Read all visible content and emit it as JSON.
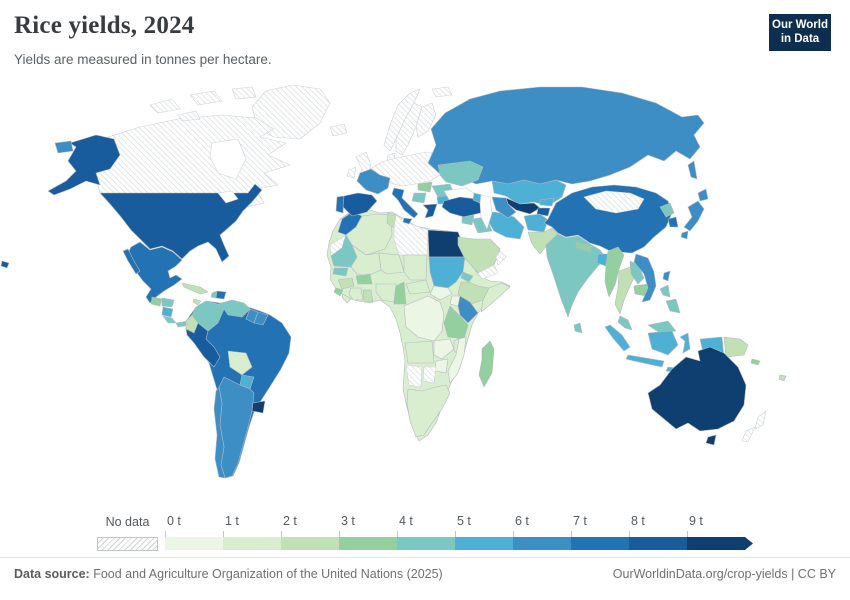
{
  "header": {
    "title": "Rice yields, 2024",
    "subtitle": "Yields are measured in tonnes per hectare."
  },
  "logo": {
    "line1": "Our World",
    "line2": "in Data",
    "bg_color": "#0d2e4e",
    "accent_color": "#d5331f"
  },
  "legend": {
    "no_data_label": "No data",
    "tick_labels": [
      "0 t",
      "1 t",
      "2 t",
      "3 t",
      "4 t",
      "5 t",
      "6 t",
      "7 t",
      "8 t",
      "9 t"
    ]
  },
  "footer": {
    "source_label": "Data source:",
    "source_text": " Food and Agriculture Organization of the United Nations (2025)",
    "license_text": "OurWorldinData.org/crop-yields | CC BY"
  },
  "chart_data": {
    "type": "choropleth",
    "title": "Rice yields, 2024",
    "unit": "tonnes per hectare",
    "year": 2024,
    "bin_edges": [
      0,
      1,
      2,
      3,
      4,
      5,
      6,
      7,
      8,
      9
    ],
    "open_ended_top_bin": true,
    "palette": [
      "#ecf6e4",
      "#d9edcf",
      "#c1e0b6",
      "#94cf9f",
      "#7cc7c2",
      "#4fb0d5",
      "#3d8ec5",
      "#2272b4",
      "#185c9e",
      "#0f3f70"
    ],
    "no_data_style": "diagonal-hatch",
    "border_color": "#b3bac0",
    "no_data_border_color": "#ccd1d5",
    "countries": [
      {
        "id": "united-states",
        "name": "United States",
        "value": 8.7
      },
      {
        "id": "canada",
        "name": "Canada",
        "value": null
      },
      {
        "id": "greenland",
        "name": "Greenland",
        "value": null
      },
      {
        "id": "mexico",
        "name": "Mexico",
        "value": 7.4
      },
      {
        "id": "guatemala",
        "name": "Guatemala",
        "value": 3.4
      },
      {
        "id": "honduras",
        "name": "Honduras",
        "value": 4.4
      },
      {
        "id": "nicaragua",
        "name": "Nicaragua",
        "value": 5.4
      },
      {
        "id": "costa-rica",
        "name": "Costa Rica",
        "value": 4.5
      },
      {
        "id": "panama",
        "name": "Panama",
        "value": 4.2
      },
      {
        "id": "cuba",
        "name": "Cuba",
        "value": 2.7
      },
      {
        "id": "jamaica",
        "name": "Jamaica",
        "value": 2.4
      },
      {
        "id": "haiti",
        "name": "Haiti",
        "value": 4.3
      },
      {
        "id": "dominican-republic",
        "name": "Dominican Republic",
        "value": 7.5
      },
      {
        "id": "colombia",
        "name": "Colombia",
        "value": 4.6
      },
      {
        "id": "venezuela",
        "name": "Venezuela",
        "value": 4.4
      },
      {
        "id": "guyana",
        "name": "Guyana",
        "value": 6.4
      },
      {
        "id": "suriname",
        "name": "Suriname",
        "value": 6.6
      },
      {
        "id": "ecuador",
        "name": "Ecuador",
        "value": 2.8
      },
      {
        "id": "peru",
        "name": "Peru",
        "value": 8.8
      },
      {
        "id": "brazil",
        "name": "Brazil",
        "value": 7.0
      },
      {
        "id": "bolivia",
        "name": "Bolivia",
        "value": 1.9
      },
      {
        "id": "paraguay",
        "name": "Paraguay",
        "value": 5.6
      },
      {
        "id": "uruguay",
        "name": "Uruguay",
        "value": 9.3
      },
      {
        "id": "argentina",
        "name": "Argentina",
        "value": 6.8
      },
      {
        "id": "chile",
        "name": "Chile",
        "value": 6.5
      },
      {
        "id": "iceland",
        "name": "Iceland",
        "value": null
      },
      {
        "id": "united-kingdom",
        "name": "United Kingdom",
        "value": null
      },
      {
        "id": "ireland",
        "name": "Ireland",
        "value": null
      },
      {
        "id": "norway",
        "name": "Norway",
        "value": null
      },
      {
        "id": "sweden",
        "name": "Sweden",
        "value": null
      },
      {
        "id": "finland",
        "name": "Finland",
        "value": null
      },
      {
        "id": "denmark",
        "name": "Denmark",
        "value": null
      },
      {
        "id": "central-europe",
        "name": "Central & Northern Europe",
        "value": null
      },
      {
        "id": "france",
        "name": "France",
        "value": 6.2
      },
      {
        "id": "portugal",
        "name": "Portugal",
        "value": 7.8
      },
      {
        "id": "spain",
        "name": "Spain",
        "value": 8.1
      },
      {
        "id": "italy",
        "name": "Italy",
        "value": 7.1
      },
      {
        "id": "greece",
        "name": "Greece",
        "value": 8.3
      },
      {
        "id": "hungary",
        "name": "Hungary",
        "value": 3.5
      },
      {
        "id": "serbia",
        "name": "Serbia",
        "value": 4.5
      },
      {
        "id": "romania",
        "name": "Romania",
        "value": 4.8
      },
      {
        "id": "bulgaria",
        "name": "Bulgaria",
        "value": 5.8
      },
      {
        "id": "ukraine",
        "name": "Ukraine",
        "value": 4.6
      },
      {
        "id": "russia",
        "name": "Russia",
        "value": 6.6
      },
      {
        "id": "turkey",
        "name": "Turkey",
        "value": 8.4
      },
      {
        "id": "azerbaijan",
        "name": "Azerbaijan",
        "value": 5.5
      },
      {
        "id": "syria",
        "name": "Syria",
        "value": 4.5
      },
      {
        "id": "iraq",
        "name": "Iraq",
        "value": 4.3
      },
      {
        "id": "iran",
        "name": "Iran",
        "value": 5.2
      },
      {
        "id": "saudi-arabia",
        "name": "Saudi Arabia",
        "value": 2.5
      },
      {
        "id": "yemen",
        "name": "Yemen",
        "value": null
      },
      {
        "id": "oman",
        "name": "Oman",
        "value": null
      },
      {
        "id": "kazakhstan",
        "name": "Kazakhstan",
        "value": 5.4
      },
      {
        "id": "uzbekistan",
        "name": "Uzbekistan",
        "value": 9.2
      },
      {
        "id": "turkmenistan",
        "name": "Turkmenistan",
        "value": 6.4
      },
      {
        "id": "kyrgyzstan",
        "name": "Kyrgyzstan",
        "value": 5.7
      },
      {
        "id": "tajikistan",
        "name": "Tajikistan",
        "value": 8.6
      },
      {
        "id": "afghanistan",
        "name": "Afghanistan",
        "value": 5.6
      },
      {
        "id": "pakistan",
        "name": "Pakistan",
        "value": 2.8
      },
      {
        "id": "india",
        "name": "India",
        "value": 4.3
      },
      {
        "id": "nepal",
        "name": "Nepal",
        "value": 3.8
      },
      {
        "id": "bangladesh",
        "name": "Bangladesh",
        "value": 5.0
      },
      {
        "id": "sri-lanka",
        "name": "Sri Lanka",
        "value": 4.4
      },
      {
        "id": "myanmar",
        "name": "Myanmar",
        "value": 3.2
      },
      {
        "id": "thailand",
        "name": "Thailand",
        "value": 2.9
      },
      {
        "id": "laos",
        "name": "Laos",
        "value": 4.4
      },
      {
        "id": "cambodia",
        "name": "Cambodia",
        "value": 3.6
      },
      {
        "id": "vietnam",
        "name": "Vietnam",
        "value": 6.2
      },
      {
        "id": "malaysia",
        "name": "Malaysia",
        "value": 4.2
      },
      {
        "id": "indonesia",
        "name": "Indonesia",
        "value": 5.3
      },
      {
        "id": "philippines",
        "name": "Philippines",
        "value": 4.1
      },
      {
        "id": "china",
        "name": "China",
        "value": 7.1
      },
      {
        "id": "mongolia",
        "name": "Mongolia",
        "value": null
      },
      {
        "id": "north-korea",
        "name": "North Korea",
        "value": 4.3
      },
      {
        "id": "south-korea",
        "name": "South Korea",
        "value": 7.3
      },
      {
        "id": "japan",
        "name": "Japan",
        "value": 6.9
      },
      {
        "id": "taiwan",
        "name": "Taiwan",
        "value": 6.1
      },
      {
        "id": "papua-new-guinea",
        "name": "Papua New Guinea",
        "value": 2.6
      },
      {
        "id": "solomon-islands",
        "name": "Solomon Islands",
        "value": 3.0
      },
      {
        "id": "fiji",
        "name": "Fiji",
        "value": 2.9
      },
      {
        "id": "australia",
        "name": "Australia",
        "value": 10.3
      },
      {
        "id": "new-zealand",
        "name": "New Zealand",
        "value": null
      },
      {
        "id": "morocco",
        "name": "Morocco",
        "value": 7.3
      },
      {
        "id": "algeria",
        "name": "Algeria",
        "value": 1.2
      },
      {
        "id": "tunisia",
        "name": "Tunisia",
        "value": 2.4
      },
      {
        "id": "libya",
        "name": "Libya",
        "value": null
      },
      {
        "id": "western-sahara",
        "name": "Western Sahara",
        "value": null
      },
      {
        "id": "egypt",
        "name": "Egypt",
        "value": 9.6
      },
      {
        "id": "mauritania",
        "name": "Mauritania",
        "value": 4.9
      },
      {
        "id": "senegal",
        "name": "Senegal",
        "value": 4.0
      },
      {
        "id": "guinea",
        "name": "Guinea",
        "value": 2.3
      },
      {
        "id": "sierra-leone",
        "name": "Sierra Leone",
        "value": 3.4
      },
      {
        "id": "liberia",
        "name": "Liberia",
        "value": 1.6
      },
      {
        "id": "ivory-coast",
        "name": "Cote d'Ivoire",
        "value": 1.9
      },
      {
        "id": "ghana",
        "name": "Ghana",
        "value": 2.8
      },
      {
        "id": "burkina-faso",
        "name": "Burkina Faso",
        "value": 3.3
      },
      {
        "id": "mali",
        "name": "Mali",
        "value": 1.8
      },
      {
        "id": "niger",
        "name": "Niger",
        "value": 1.2
      },
      {
        "id": "nigeria",
        "name": "Nigeria",
        "value": 1.6
      },
      {
        "id": "chad",
        "name": "Chad",
        "value": 1.4
      },
      {
        "id": "cameroon",
        "name": "Cameroon",
        "value": 3.1
      },
      {
        "id": "central-african-republic",
        "name": "Central African Republic",
        "value": 1.3
      },
      {
        "id": "sudan",
        "name": "Sudan",
        "value": 5.5
      },
      {
        "id": "south-sudan",
        "name": "South Sudan",
        "value": 0.6
      },
      {
        "id": "eritrea",
        "name": "Eritrea",
        "value": 4.1
      },
      {
        "id": "ethiopia",
        "name": "Ethiopia",
        "value": 2.9
      },
      {
        "id": "somalia",
        "name": "Somalia",
        "value": 1.0
      },
      {
        "id": "uganda",
        "name": "Uganda",
        "value": 0.9
      },
      {
        "id": "kenya",
        "name": "Kenya",
        "value": 6.3
      },
      {
        "id": "tanzania",
        "name": "Tanzania",
        "value": 3.4
      },
      {
        "id": "dr-congo",
        "name": "Democratic Republic of Congo",
        "value": 0.8
      },
      {
        "id": "angola",
        "name": "Angola",
        "value": 1.2
      },
      {
        "id": "zambia",
        "name": "Zambia",
        "value": 0.9
      },
      {
        "id": "malawi",
        "name": "Malawi",
        "value": 1.9
      },
      {
        "id": "mozambique",
        "name": "Mozambique",
        "value": 0.6
      },
      {
        "id": "zimbabwe",
        "name": "Zimbabwe",
        "value": 0.8
      },
      {
        "id": "madagascar",
        "name": "Madagascar",
        "value": 3.2
      },
      {
        "id": "namibia",
        "name": "Namibia",
        "value": null
      },
      {
        "id": "botswana",
        "name": "Botswana",
        "value": null
      },
      {
        "id": "south-africa",
        "name": "South Africa",
        "value": 1.1
      }
    ]
  }
}
